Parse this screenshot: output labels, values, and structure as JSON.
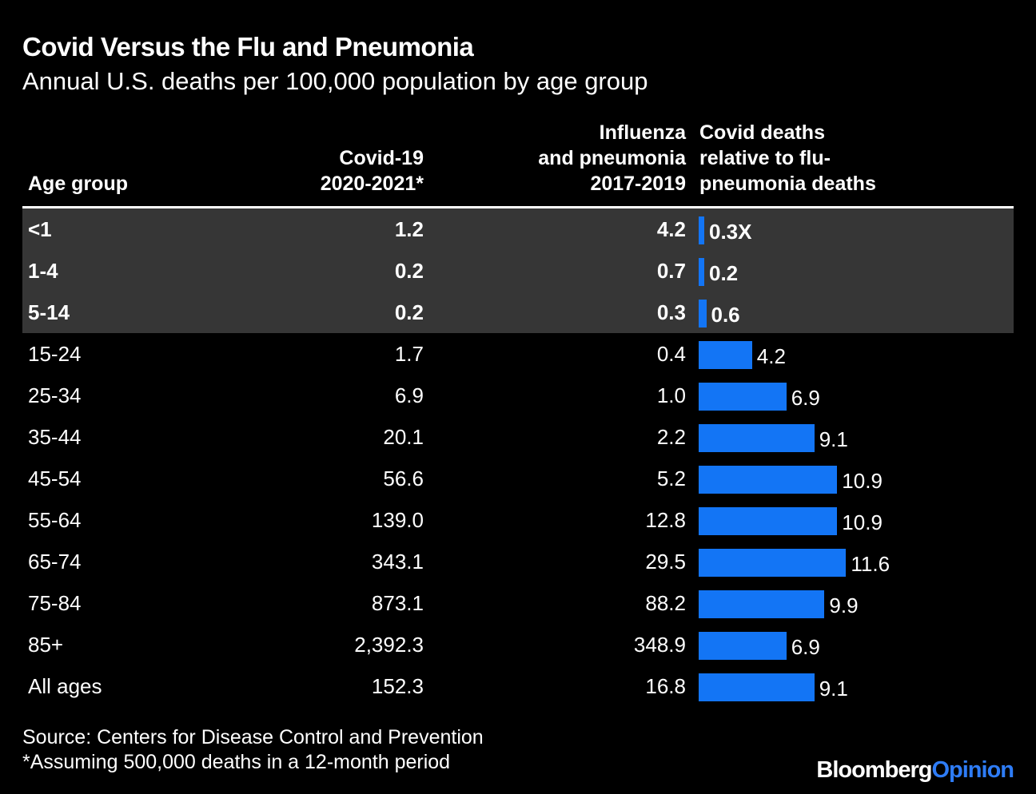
{
  "title": "Covid Versus the Flu and Pneumonia",
  "subtitle": "Annual U.S. deaths per 100,000 population by age group",
  "headers": {
    "age": "Age group",
    "covid": [
      "Covid-19",
      "2020-2021*"
    ],
    "flu": [
      "Influenza",
      "and pneumonia",
      "2017-2019"
    ],
    "ratio": [
      "Covid deaths",
      "relative to flu-",
      "pneumonia deaths"
    ]
  },
  "chart_data": {
    "type": "table",
    "title": "Covid Versus the Flu and Pneumonia",
    "subtitle": "Annual U.S. deaths per 100,000 population by age group",
    "columns": [
      "Age group",
      "Covid-19 2020-2021*",
      "Influenza and pneumonia 2017-2019",
      "Covid deaths relative to flu-pneumonia deaths"
    ],
    "highlighted_rows": [
      "<1",
      "1-4",
      "5-14"
    ],
    "bar_color": "#1375f5",
    "rows": [
      {
        "age": "<1",
        "covid": "1.2",
        "flu": "4.2",
        "ratio": 0.3,
        "ratio_label": "0.3X"
      },
      {
        "age": "1-4",
        "covid": "0.2",
        "flu": "0.7",
        "ratio": 0.2,
        "ratio_label": "0.2"
      },
      {
        "age": "5-14",
        "covid": "0.2",
        "flu": "0.3",
        "ratio": 0.6,
        "ratio_label": "0.6"
      },
      {
        "age": "15-24",
        "covid": "1.7",
        "flu": "0.4",
        "ratio": 4.2,
        "ratio_label": "4.2"
      },
      {
        "age": "25-34",
        "covid": "6.9",
        "flu": "1.0",
        "ratio": 6.9,
        "ratio_label": "6.9"
      },
      {
        "age": "35-44",
        "covid": "20.1",
        "flu": "2.2",
        "ratio": 9.1,
        "ratio_label": "9.1"
      },
      {
        "age": "45-54",
        "covid": "56.6",
        "flu": "5.2",
        "ratio": 10.9,
        "ratio_label": "10.9"
      },
      {
        "age": "55-64",
        "covid": "139.0",
        "flu": "12.8",
        "ratio": 10.9,
        "ratio_label": "10.9"
      },
      {
        "age": "65-74",
        "covid": "343.1",
        "flu": "29.5",
        "ratio": 11.6,
        "ratio_label": "11.6"
      },
      {
        "age": "75-84",
        "covid": "873.1",
        "flu": "88.2",
        "ratio": 9.9,
        "ratio_label": "9.9"
      },
      {
        "age": "85+",
        "covid": "2,392.3",
        "flu": "348.9",
        "ratio": 6.9,
        "ratio_label": "6.9"
      },
      {
        "age": "All ages",
        "covid": "152.3",
        "flu": "16.8",
        "ratio": 9.1,
        "ratio_label": "9.1"
      }
    ]
  },
  "source": {
    "line1": "Source: Centers for Disease Control and Prevention",
    "line2": "*Assuming 500,000 deaths in a 12-month period"
  },
  "logo": {
    "part1": "Bloomberg",
    "part2": "Opinion"
  }
}
